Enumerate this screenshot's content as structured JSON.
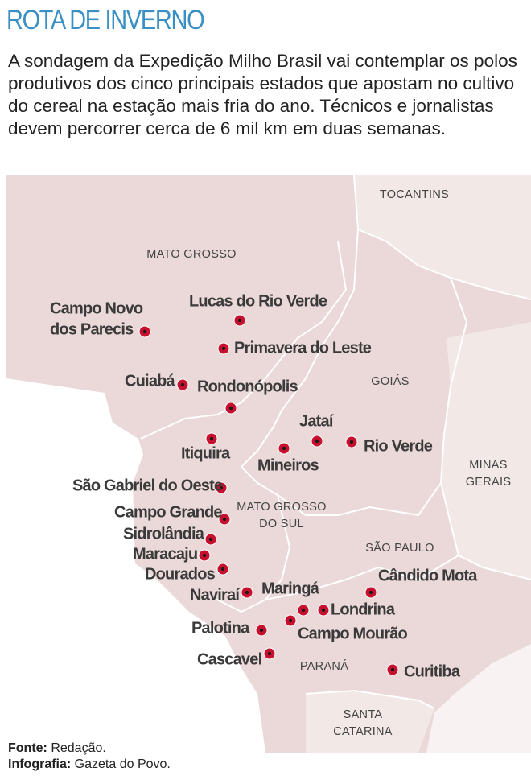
{
  "header": {
    "title": "ROTA DE INVERNO",
    "intro": "A sondagem da Expedição Milho Brasil vai contemplar os polos produtivos dos cinco principais estados que apostam no cultivo do cereal na estação mais fria do ano. Técnicos e jornalistas devem percorrer cerca de 6 mil km em duas semanas."
  },
  "states": [
    {
      "lines": [
        "TOCANTINS"
      ]
    },
    {
      "lines": [
        "MATO GROSSO"
      ]
    },
    {
      "lines": [
        "GOIÁS"
      ]
    },
    {
      "lines": [
        "MINAS",
        "GERAIS"
      ]
    },
    {
      "lines": [
        "MATO GROSSO",
        "DO SUL"
      ]
    },
    {
      "lines": [
        "SÃO PAULO"
      ]
    },
    {
      "lines": [
        "PARANÁ"
      ]
    },
    {
      "lines": [
        "SANTA",
        "CATARINA"
      ]
    }
  ],
  "cities": [
    {
      "lines": [
        "Campo Novo",
        "dos Parecis"
      ]
    },
    {
      "lines": [
        "Lucas do Rio Verde"
      ]
    },
    {
      "lines": [
        "Primavera do Leste"
      ]
    },
    {
      "lines": [
        "Cuiabá"
      ]
    },
    {
      "lines": [
        "Rondonópolis"
      ]
    },
    {
      "lines": [
        "Itiquira"
      ]
    },
    {
      "lines": [
        "Mineiros"
      ]
    },
    {
      "lines": [
        "Jataí"
      ]
    },
    {
      "lines": [
        "Rio Verde"
      ]
    },
    {
      "lines": [
        "São Gabriel do Oeste"
      ]
    },
    {
      "lines": [
        "Campo Grande"
      ]
    },
    {
      "lines": [
        "Sidrolândia"
      ]
    },
    {
      "lines": [
        "Maracaju"
      ]
    },
    {
      "lines": [
        "Dourados"
      ]
    },
    {
      "lines": [
        "Naviraí"
      ]
    },
    {
      "lines": [
        "Maringá"
      ]
    },
    {
      "lines": [
        "Londrina"
      ]
    },
    {
      "lines": [
        "Campo Mourão"
      ]
    },
    {
      "lines": [
        "Palotina"
      ]
    },
    {
      "lines": [
        "Cascavel"
      ]
    },
    {
      "lines": [
        "Cândido Mota"
      ]
    },
    {
      "lines": [
        "Curitiba"
      ]
    }
  ],
  "footer": {
    "source_label": "Fonte:",
    "source": "Redação.",
    "credit_label": "Infografia:",
    "credit": "Gazeta do Povo."
  }
}
